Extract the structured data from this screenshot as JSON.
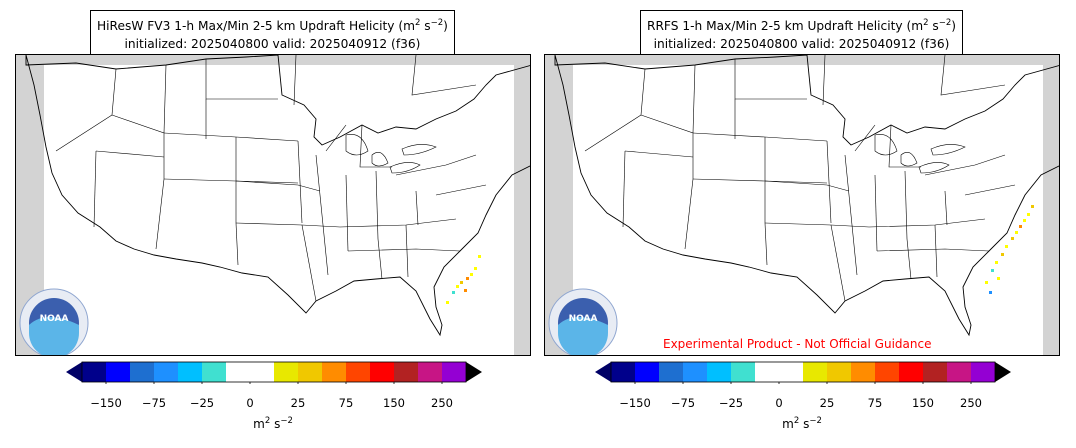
{
  "panels": [
    {
      "id": "hiresw",
      "title_line1": "HiResW FV3 1-h Max/Min 2-5 km Updraft Helicity (m",
      "title_sup1": "2",
      "title_mid": " s",
      "title_sup2": "−2",
      "title_end": ")",
      "title_line2": "initialized: 2025040800 valid: 2025040912 (f36)",
      "watermark": ""
    },
    {
      "id": "rrfs",
      "title_line1": "RRFS 1-h Max/Min 2-5 km Updraft Helicity (m",
      "title_sup1": "2",
      "title_mid": " s",
      "title_sup2": "−2",
      "title_end": ")",
      "title_line2": "initialized: 2025040800 valid: 2025040912 (f36)",
      "watermark": "Experimental Product - Not Official Guidance"
    }
  ],
  "colorbar": {
    "ticks": [
      "−150",
      "−75",
      "−25",
      "0",
      "25",
      "75",
      "150",
      "250"
    ],
    "unit_base": "m",
    "unit_sup1": "2",
    "unit_mid": " s",
    "unit_sup2": "−2",
    "colors": [
      "#00008b",
      "#0000ff",
      "#1e6fd0",
      "#1e90ff",
      "#00bfff",
      "#40e0d0",
      "#ffffff",
      "#ffffff",
      "#e8e800",
      "#f0c800",
      "#ff8c00",
      "#ff4500",
      "#ff0000",
      "#b22222",
      "#c71585",
      "#9400d3"
    ],
    "under_color": "#000066",
    "over_color": "#000000"
  },
  "logo": {
    "name": "noaa-logo",
    "text": "NOAA"
  },
  "colors": {
    "land_fill": "#ffffff",
    "nodata": "#d3d3d3",
    "borders": "#000000"
  }
}
